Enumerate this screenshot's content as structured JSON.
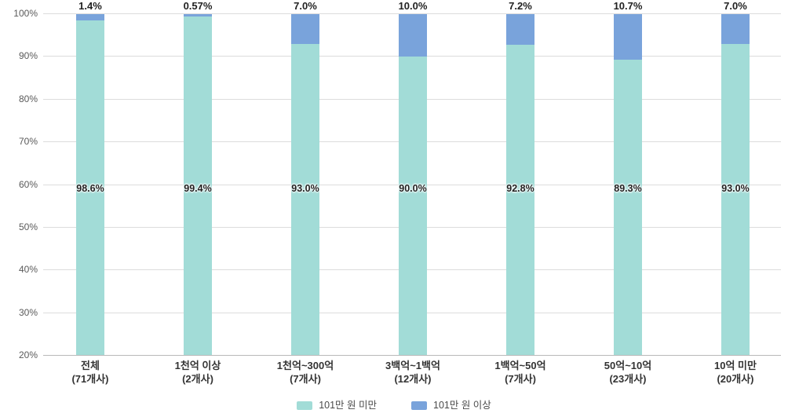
{
  "chart_data": {
    "type": "bar",
    "stacked": true,
    "percent_stacked": true,
    "orientation": "vertical",
    "categories": [
      {
        "label": "전체",
        "sub": "(71개사)"
      },
      {
        "label": "1천억 이상",
        "sub": "(2개사)"
      },
      {
        "label": "1천억~300억",
        "sub": "(7개사)"
      },
      {
        "label": "3백억~1백억",
        "sub": "(12개사)"
      },
      {
        "label": "1백억~50억",
        "sub": "(7개사)"
      },
      {
        "label": "50억~10억",
        "sub": "(23개사)"
      },
      {
        "label": "10억 미만",
        "sub": "(20개사)"
      }
    ],
    "series": [
      {
        "name": "101만 원 미만",
        "color": "#a2dcd7",
        "values": [
          98.6,
          99.4,
          93.0,
          90.0,
          92.8,
          89.3,
          93.0
        ],
        "labels": [
          "98.6%",
          "99.4%",
          "93.0%",
          "90.0%",
          "92.8%",
          "89.3%",
          "93.0%"
        ]
      },
      {
        "name": "101만 원 이상",
        "color": "#79a3db",
        "values": [
          1.4,
          0.57,
          7.0,
          10.0,
          7.2,
          10.7,
          7.0
        ],
        "labels": [
          "1.4%",
          "0.57%",
          "7.0%",
          "10.0%",
          "7.2%",
          "10.7%",
          "7.0%"
        ]
      }
    ],
    "title": "",
    "xlabel": "",
    "ylabel": "",
    "ylim": [
      20,
      100
    ],
    "yticks": [
      "100%",
      "90%",
      "80%",
      "70%",
      "60%",
      "50%",
      "40%",
      "30%",
      "20%"
    ],
    "ytick_values": [
      100,
      90,
      80,
      70,
      60,
      50,
      40,
      30,
      20
    ],
    "grid": true,
    "legend_position": "bottom"
  }
}
